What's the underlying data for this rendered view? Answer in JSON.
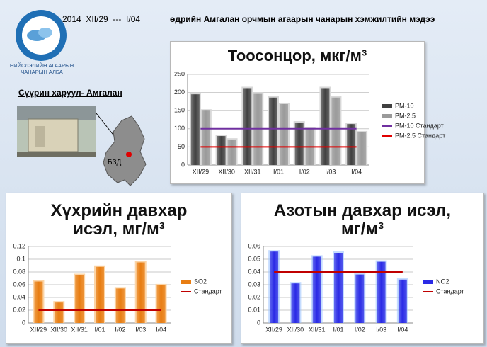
{
  "header": {
    "period": "2014  XII/29  ---  I/04",
    "title": "өдрийн Амгалан орчмын агаарын чанарын хэмжилтийн мэдээ",
    "org": "НИЙСЛЭЛИЙН АГААРЫН ЧАНАРЫН АЛБА",
    "station": "Сүүрин харуул- Амгалан",
    "district": "БЗД"
  },
  "chart_data": [
    {
      "type": "bar",
      "title": "Тоосонцор, мкг/м³",
      "categories": [
        "XII/29",
        "XII/30",
        "XII/31",
        "I/01",
        "I/02",
        "I/03",
        "I/04"
      ],
      "series": [
        {
          "name": "PM-10",
          "type": "bar",
          "color": "#404040",
          "values": [
            195,
            80,
            212,
            186,
            117,
            212,
            113
          ]
        },
        {
          "name": "PM-2.5",
          "type": "bar",
          "color": "#9a9a9a",
          "values": [
            150,
            70,
            196,
            168,
            100,
            186,
            90
          ]
        },
        {
          "name": "PM-10 Стандарт",
          "type": "line",
          "color": "#7030a0",
          "values": [
            100,
            100,
            100,
            100,
            100,
            100,
            100
          ]
        },
        {
          "name": "PM-2.5 Стандарт",
          "type": "line",
          "color": "#e00000",
          "values": [
            50,
            50,
            50,
            50,
            50,
            50,
            50
          ]
        }
      ],
      "ylim": [
        0,
        250
      ],
      "yticks": [
        0,
        50,
        100,
        150,
        200,
        250
      ],
      "grid": true,
      "legend": "right"
    },
    {
      "type": "bar",
      "title": "Хүхрийн давхар исэл, мг/м³",
      "categories": [
        "XII/29",
        "XII/30",
        "XII/31",
        "I/01",
        "I/02",
        "I/03",
        "I/04"
      ],
      "series": [
        {
          "name": "SO2",
          "type": "bar",
          "color": "#e87d12",
          "values": [
            0.065,
            0.032,
            0.075,
            0.088,
            0.054,
            0.095,
            0.059
          ]
        },
        {
          "name": "Стандарт",
          "type": "line",
          "color": "#c00000",
          "values": [
            0.02,
            0.02,
            0.02,
            0.02,
            0.02,
            0.02,
            0.02
          ]
        }
      ],
      "ylim": [
        0,
        0.12
      ],
      "yticks": [
        0,
        0.02,
        0.04,
        0.06,
        0.08,
        0.1,
        0.12
      ],
      "grid": true,
      "legend": "right"
    },
    {
      "type": "bar",
      "title": "Азотын давхар исэл, мг/м³",
      "categories": [
        "XII/29",
        "XII/30",
        "XII/31",
        "I/01",
        "I/02",
        "I/03",
        "I/04"
      ],
      "series": [
        {
          "name": "NO2",
          "type": "bar",
          "color": "#2a2ae6",
          "values": [
            0.056,
            0.031,
            0.052,
            0.055,
            0.038,
            0.048,
            0.034
          ]
        },
        {
          "name": "Стандарт",
          "type": "line",
          "color": "#c00000",
          "values": [
            0.04,
            0.04,
            0.04,
            0.04,
            0.04,
            0.04,
            0.04
          ]
        }
      ],
      "ylim": [
        0,
        0.06
      ],
      "yticks": [
        0,
        0.01,
        0.02,
        0.03,
        0.04,
        0.05,
        0.06
      ],
      "grid": true,
      "legend": "right"
    }
  ]
}
